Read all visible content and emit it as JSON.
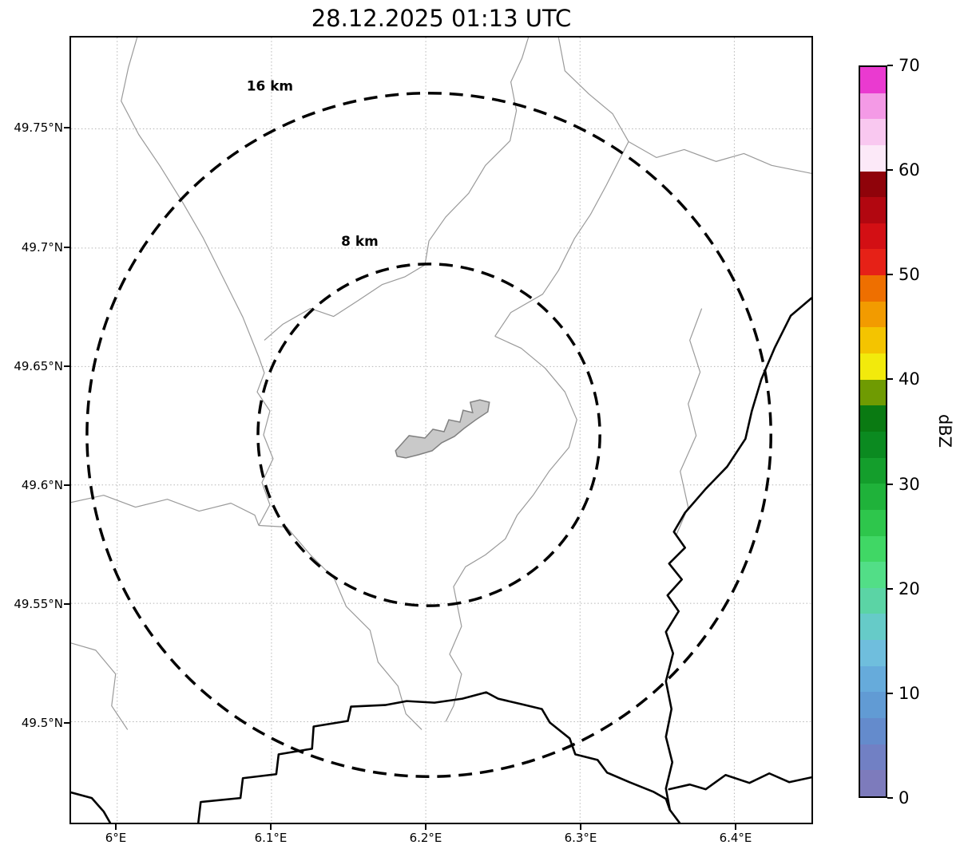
{
  "title": "28.12.2025 01:13 UTC",
  "axes": {
    "x_ticks": [
      "6°E",
      "6.1°E",
      "6.2°E",
      "6.3°E",
      "6.4°E"
    ],
    "y_ticks": [
      "49.75°N",
      "49.7°N",
      "49.65°N",
      "49.6°N",
      "49.55°N",
      "49.5°N"
    ]
  },
  "rings": {
    "outer_label": "16 km",
    "inner_label": "8 km"
  },
  "colorbar": {
    "label": "dBZ",
    "min": 0,
    "max": 70,
    "ticks": [
      0,
      10,
      20,
      30,
      40,
      50,
      60,
      70
    ],
    "segments": [
      "#7d7bbc",
      "#7180c4",
      "#648bcc",
      "#619bd4",
      "#66abdb",
      "#6fbedd",
      "#66cbc8",
      "#5bd4a5",
      "#52de87",
      "#40d765",
      "#2ec64c",
      "#1fb23a",
      "#149e2c",
      "#0b8a20",
      "#0a7a12",
      "#6f9b02",
      "#f2ea0c",
      "#f4c400",
      "#f29b00",
      "#ee6f00",
      "#e62117",
      "#d30f14",
      "#b20710",
      "#8f030a",
      "#fce9f8",
      "#f9c8f0",
      "#f49ae6",
      "#ea3ad0"
    ]
  },
  "map": {
    "grid_color": "#b5b5b5",
    "admin_boundary_color": "#9a9a9a",
    "country_border_color": "#000000",
    "city_fill": "#c9c9c9",
    "city_outline": "#808080",
    "ring_color": "#000000"
  },
  "chart_data": {
    "type": "map",
    "title": "28.12.2025 01:13 UTC",
    "x_ticks": [
      "6°E",
      "6.1°E",
      "6.2°E",
      "6.3°E",
      "6.4°E"
    ],
    "y_ticks": [
      "49.75°N",
      "49.7°N",
      "49.65°N",
      "49.6°N",
      "49.55°N",
      "49.5°N"
    ],
    "x_range_deg_e": [
      5.97,
      6.45
    ],
    "y_range_deg_n": [
      49.46,
      49.79
    ],
    "grid": true,
    "colorbar": {
      "label": "dBZ",
      "range": [
        0,
        70
      ],
      "ticks": [
        0,
        10,
        20,
        30,
        40,
        50,
        60,
        70
      ]
    },
    "range_rings_km": [
      8,
      16
    ],
    "ring_center": {
      "lon_deg_e": 6.2,
      "lat_deg_n": 49.62
    },
    "reflectivity": "no echoes visible"
  }
}
